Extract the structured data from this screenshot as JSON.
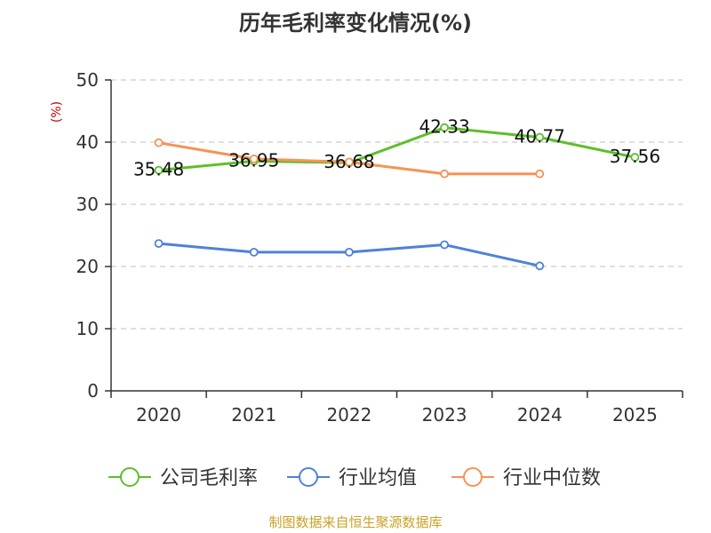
{
  "title": "历年毛利率变化情况(%)",
  "source_note": "制图数据来自恒生聚源数据库",
  "chart_data": {
    "type": "line",
    "title": "历年毛利率变化情况(%)",
    "ylabel": "(%)",
    "xlabel": "",
    "ylim": [
      0,
      50
    ],
    "yticks": [
      0,
      10,
      20,
      30,
      40,
      50
    ],
    "grid": true,
    "legend_position": "bottom",
    "categories": [
      "2020",
      "2021",
      "2022",
      "2023",
      "2024",
      "2025"
    ],
    "series": [
      {
        "name": "公司毛利率",
        "color": "#5cbf2a",
        "values": [
          35.48,
          36.95,
          36.68,
          42.33,
          40.77,
          37.56
        ],
        "data_labels": [
          "35.48",
          "36.95",
          "36.68",
          "42.33",
          "40.77",
          "37.56"
        ]
      },
      {
        "name": "行业均值",
        "color": "#4f81d9",
        "values": [
          23.7,
          22.3,
          22.3,
          23.5,
          20.1,
          null
        ]
      },
      {
        "name": "行业中位数",
        "color": "#f79256",
        "values": [
          39.9,
          37.3,
          36.8,
          34.9,
          34.9,
          null
        ]
      }
    ]
  }
}
